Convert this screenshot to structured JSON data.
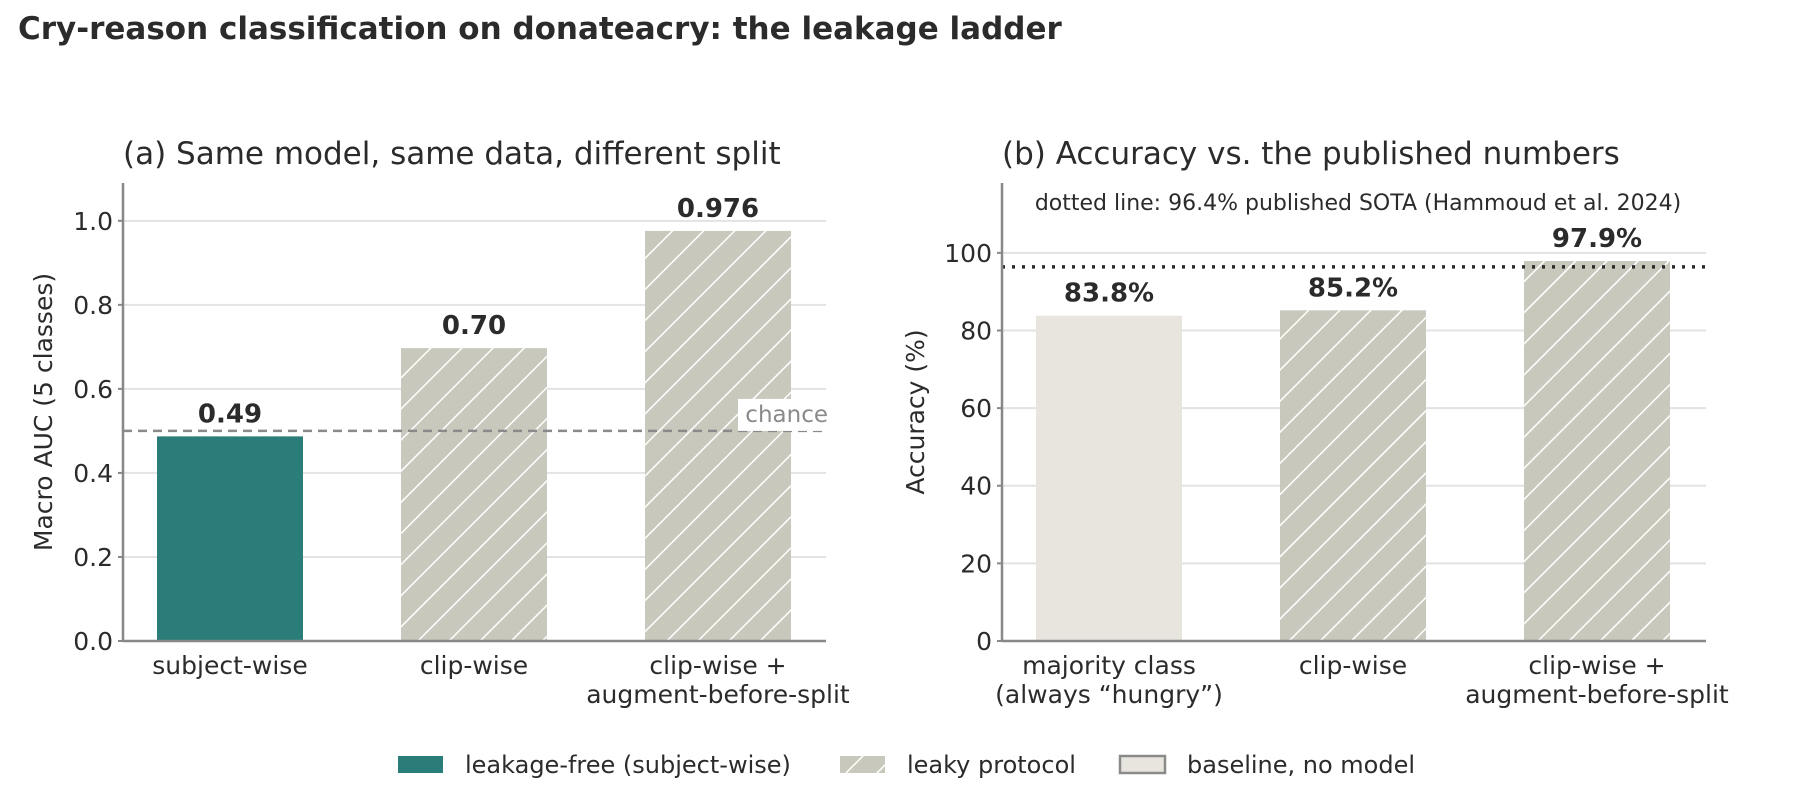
{
  "figure": {
    "title": "Cry-reason classification on donateacry: the leakage ladder"
  },
  "colors": {
    "leakage_free": "#2a7d78",
    "leaky": "#c9c8bd",
    "baseline": "#e7e5dd",
    "baseline_edge": "#8a8a8a",
    "axis": "#888888",
    "grid": "#e3e3e3",
    "text": "#2b2b2b"
  },
  "chart_data": [
    {
      "type": "bar",
      "title": "(a) Same model, same data, different split",
      "xlabel": "",
      "ylabel": "Macro AUC (5 classes)",
      "ylim": [
        0,
        1.09
      ],
      "yticks": [
        0.0,
        0.2,
        0.4,
        0.6,
        0.8,
        1.0
      ],
      "ytick_labels": [
        "0.0",
        "0.2",
        "0.4",
        "0.6",
        "0.8",
        "1.0"
      ],
      "grid": true,
      "categories": [
        [
          "subject-wise"
        ],
        [
          "clip-wise"
        ],
        [
          "clip-wise +",
          "augment-before-split"
        ]
      ],
      "values": [
        0.487,
        0.697,
        0.976
      ],
      "value_labels": [
        "0.49",
        "0.70",
        "0.976"
      ],
      "styles": [
        "leakage_free",
        "leaky",
        "leaky"
      ],
      "reference_line": {
        "value": 0.5,
        "style": "dashed",
        "label": "chance"
      }
    },
    {
      "type": "bar",
      "title": "(b) Accuracy vs. the published numbers",
      "xlabel": "",
      "ylabel": "Accuracy (%)",
      "ylim": [
        0,
        100
      ],
      "ylim_top": 118,
      "yticks": [
        0,
        20,
        40,
        60,
        80,
        100
      ],
      "ytick_labels": [
        "0",
        "20",
        "40",
        "60",
        "80",
        "100"
      ],
      "grid": true,
      "categories": [
        [
          "majority class",
          "(always “hungry”)"
        ],
        [
          "clip-wise"
        ],
        [
          "clip-wise +",
          "augment-before-split"
        ]
      ],
      "values": [
        83.8,
        85.2,
        97.9
      ],
      "value_labels": [
        "83.8%",
        "85.2%",
        "97.9%"
      ],
      "styles": [
        "baseline",
        "leaky",
        "leaky"
      ],
      "reference_line": {
        "value": 96.4,
        "style": "dotted"
      },
      "annotation": "dotted line: 96.4% published SOTA (Hammoud et al. 2024)"
    }
  ],
  "legend": {
    "placement": "bottom-center",
    "entries": [
      {
        "label": "leakage-free (subject-wise)",
        "style": "leakage_free"
      },
      {
        "label": "leaky protocol",
        "style": "leaky"
      },
      {
        "label": "baseline, no model",
        "style": "baseline"
      }
    ]
  }
}
